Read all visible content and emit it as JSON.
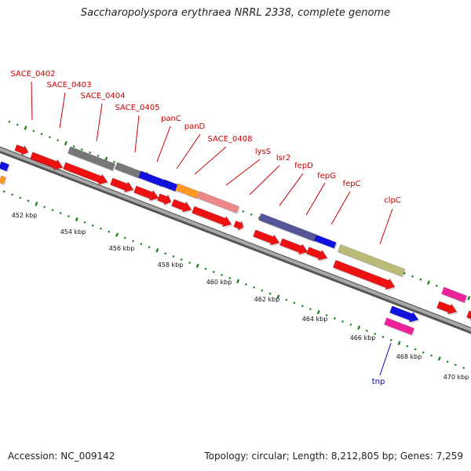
{
  "title": "Saccharopolyspora erythraea NRRL 2338, complete genome",
  "footer": {
    "accession": "Accession: NC_009142",
    "summary": "Topology: circular; Length: 8,212,805 bp; Genes: 7,259"
  },
  "scale_labels": [
    "452 kbp",
    "454 kbp",
    "456 kbp",
    "458 kbp",
    "460 kbp",
    "462 kbp",
    "464 kbp",
    "466 kbp",
    "468 kbp",
    "470 kbp"
  ],
  "feature_labels": [
    {
      "text": "SACE_0402",
      "color": "#cc0000"
    },
    {
      "text": "SACE_0403",
      "color": "#cc0000"
    },
    {
      "text": "SACE_0404",
      "color": "#cc0000"
    },
    {
      "text": "SACE_0405",
      "color": "#cc0000"
    },
    {
      "text": "panC",
      "color": "#cc0000"
    },
    {
      "text": "panD",
      "color": "#cc0000"
    },
    {
      "text": "SACE_0408",
      "color": "#cc0000"
    },
    {
      "text": "lysS",
      "color": "#cc0000"
    },
    {
      "text": "lsr2",
      "color": "#cc0000"
    },
    {
      "text": "fepD",
      "color": "#cc0000"
    },
    {
      "text": "fepG",
      "color": "#cc0000"
    },
    {
      "text": "fepC",
      "color": "#cc0000"
    },
    {
      "text": "clpC",
      "color": "#cc0000"
    },
    {
      "text": "tnp",
      "color": "#0000bb"
    }
  ],
  "colors": {
    "backbone": "#8c8c8c",
    "tick": "#1a7a1a",
    "cds": "#ee1111",
    "blue": "#1111dd",
    "grey": "#777777",
    "orange": "#ff9922",
    "pink": "#ee8888",
    "purple": "#555599",
    "olive": "#bbbb77",
    "magenta": "#ee2299"
  }
}
